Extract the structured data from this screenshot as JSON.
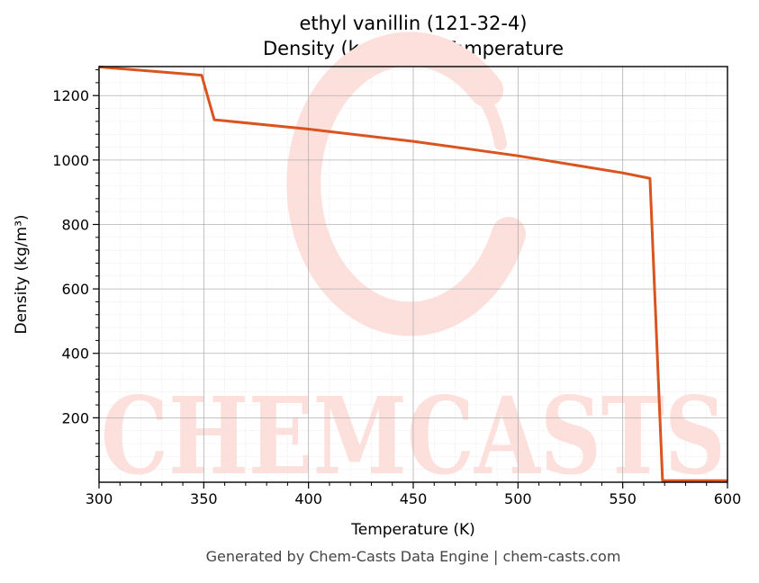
{
  "page": {
    "footer": "Generated by Chem-Casts Data Engine | chem-casts.com",
    "watermark": "CHEMCASTS"
  },
  "chart_data": {
    "type": "line",
    "title": "ethyl vanillin (121-32-4)",
    "subtitle": "Density (kg/m³) vs Temperature",
    "xlabel": "Temperature (K)",
    "ylabel": "Density (kg/m³)",
    "xlim": [
      300,
      600
    ],
    "ylim": [
      0,
      1290
    ],
    "xticks": [
      300,
      350,
      400,
      450,
      500,
      550,
      600
    ],
    "yticks": [
      200,
      400,
      600,
      800,
      1000,
      1200
    ],
    "grid": true,
    "legend": "none",
    "series": [
      {
        "color": "#d9541e",
        "points": [
          [
            300,
            1289
          ],
          [
            349,
            1263
          ],
          [
            355,
            1125
          ],
          [
            400,
            1096
          ],
          [
            450,
            1058
          ],
          [
            500,
            1013
          ],
          [
            550,
            960
          ],
          [
            563,
            943
          ],
          [
            569,
            5
          ],
          [
            600,
            5
          ]
        ]
      }
    ]
  }
}
